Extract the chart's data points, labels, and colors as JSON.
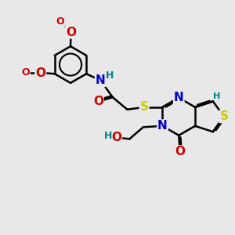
{
  "bg": "#e8e8e8",
  "bond_color": "#000000",
  "bw": 1.8,
  "fs": 11,
  "fs2": 9,
  "colors": {
    "N": "#0000cc",
    "O": "#cc0000",
    "S": "#cccc00",
    "H": "#008080"
  }
}
